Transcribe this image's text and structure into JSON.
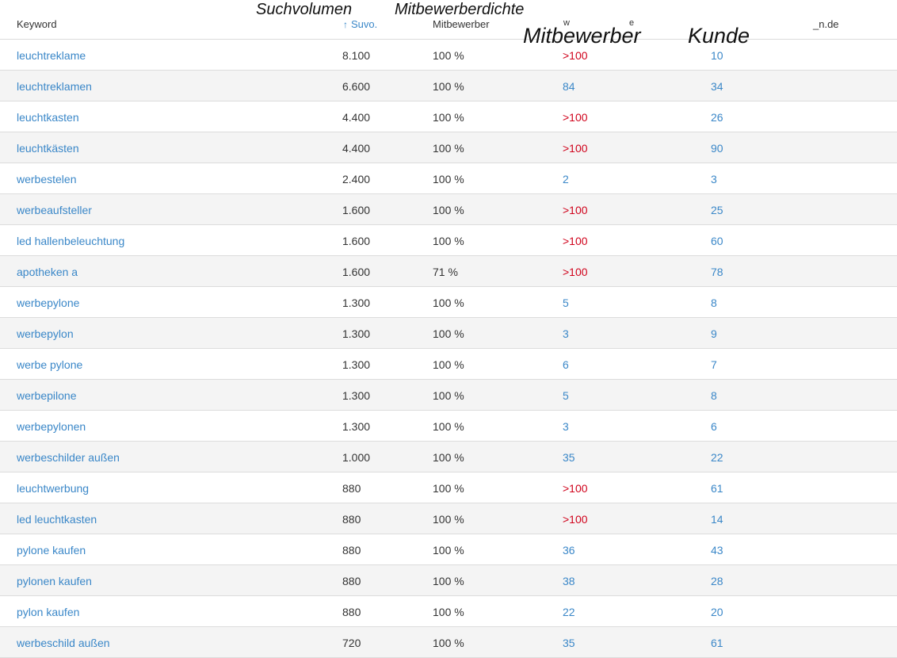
{
  "header": {
    "keyword": "Keyword",
    "suvo": "Suvo.",
    "mitbewerber": "Mitbewerber",
    "col4": "w",
    "col5": "e",
    "col6": "_n.de"
  },
  "overlay": {
    "suchvolumen": "Suchvolumen",
    "mitbewerberdichte": "Mitbewerberdichte",
    "mitbewerber": "Mitbewerber",
    "kunde": "Kunde"
  },
  "colors": {
    "link": "#3a87c8",
    "alert": "#d0021b"
  },
  "rows": [
    {
      "keyword": "leuchtreklame",
      "suvo": "8.100",
      "dichte": "100 %",
      "mitbewerber": ">100",
      "kunde": "10"
    },
    {
      "keyword": "leuchtreklamen",
      "suvo": "6.600",
      "dichte": "100 %",
      "mitbewerber": "84",
      "kunde": "34"
    },
    {
      "keyword": "leuchtkasten",
      "suvo": "4.400",
      "dichte": "100 %",
      "mitbewerber": ">100",
      "kunde": "26"
    },
    {
      "keyword": "leuchtkästen",
      "suvo": "4.400",
      "dichte": "100 %",
      "mitbewerber": ">100",
      "kunde": "90"
    },
    {
      "keyword": "werbestelen",
      "suvo": "2.400",
      "dichte": "100 %",
      "mitbewerber": "2",
      "kunde": "3"
    },
    {
      "keyword": "werbeaufsteller",
      "suvo": "1.600",
      "dichte": "100 %",
      "mitbewerber": ">100",
      "kunde": "25"
    },
    {
      "keyword": "led hallenbeleuchtung",
      "suvo": "1.600",
      "dichte": "100 %",
      "mitbewerber": ">100",
      "kunde": "60"
    },
    {
      "keyword": "apotheken a",
      "suvo": "1.600",
      "dichte": "71 %",
      "mitbewerber": ">100",
      "kunde": "78"
    },
    {
      "keyword": "werbepylone",
      "suvo": "1.300",
      "dichte": "100 %",
      "mitbewerber": "5",
      "kunde": "8"
    },
    {
      "keyword": "werbepylon",
      "suvo": "1.300",
      "dichte": "100 %",
      "mitbewerber": "3",
      "kunde": "9"
    },
    {
      "keyword": "werbe pylone",
      "suvo": "1.300",
      "dichte": "100 %",
      "mitbewerber": "6",
      "kunde": "7"
    },
    {
      "keyword": "werbepilone",
      "suvo": "1.300",
      "dichte": "100 %",
      "mitbewerber": "5",
      "kunde": "8"
    },
    {
      "keyword": "werbepylonen",
      "suvo": "1.300",
      "dichte": "100 %",
      "mitbewerber": "3",
      "kunde": "6"
    },
    {
      "keyword": "werbeschilder außen",
      "suvo": "1.000",
      "dichte": "100 %",
      "mitbewerber": "35",
      "kunde": "22"
    },
    {
      "keyword": "leuchtwerbung",
      "suvo": "880",
      "dichte": "100 %",
      "mitbewerber": ">100",
      "kunde": "61"
    },
    {
      "keyword": "led leuchtkasten",
      "suvo": "880",
      "dichte": "100 %",
      "mitbewerber": ">100",
      "kunde": "14"
    },
    {
      "keyword": "pylone kaufen",
      "suvo": "880",
      "dichte": "100 %",
      "mitbewerber": "36",
      "kunde": "43"
    },
    {
      "keyword": "pylonen kaufen",
      "suvo": "880",
      "dichte": "100 %",
      "mitbewerber": "38",
      "kunde": "28"
    },
    {
      "keyword": "pylon kaufen",
      "suvo": "880",
      "dichte": "100 %",
      "mitbewerber": "22",
      "kunde": "20"
    },
    {
      "keyword": "werbeschild außen",
      "suvo": "720",
      "dichte": "100 %",
      "mitbewerber": "35",
      "kunde": "61"
    }
  ]
}
